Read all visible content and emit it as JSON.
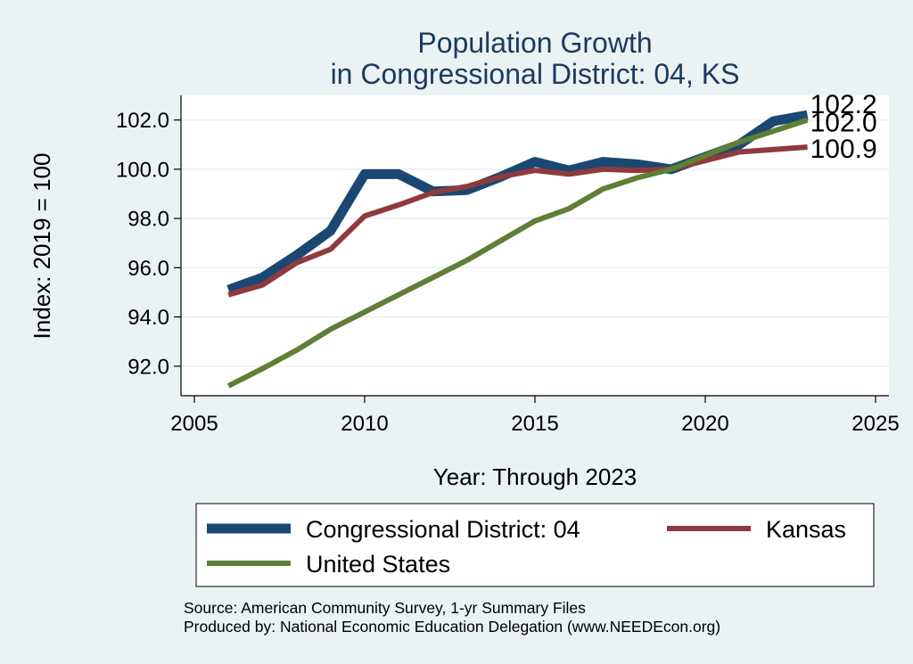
{
  "chart_data": {
    "type": "line",
    "title": [
      "Population Growth",
      "in Congressional District: 04, KS"
    ],
    "xlabel": "Year: Through 2023",
    "ylabel": "Index: 2019 = 100",
    "xlim": [
      2005,
      2025
    ],
    "ylim": [
      90.8,
      103.0
    ],
    "xticks": [
      2005,
      2010,
      2015,
      2020,
      2025
    ],
    "yticks": [
      92.0,
      94.0,
      96.0,
      98.0,
      100.0,
      102.0
    ],
    "ytick_labels": [
      "92.0",
      "94.0",
      "96.0",
      "98.0",
      "100.0",
      "102.0"
    ],
    "grid": "horizontal",
    "x": [
      2006,
      2007,
      2008,
      2009,
      2010,
      2011,
      2012,
      2013,
      2014,
      2015,
      2016,
      2017,
      2018,
      2019,
      2020,
      2021,
      2022,
      2023
    ],
    "series": [
      {
        "name": "Congressional District: 04",
        "color": "#1a4872",
        "values": [
          95.1,
          95.6,
          96.5,
          97.5,
          99.8,
          99.8,
          99.1,
          99.15,
          99.7,
          100.3,
          99.95,
          100.3,
          100.2,
          100.0,
          100.5,
          101.0,
          101.95,
          102.2
        ],
        "end_label": "102.2"
      },
      {
        "name": "Kansas",
        "color": "#8f3a3e",
        "values": [
          94.9,
          95.3,
          96.2,
          96.75,
          98.1,
          98.55,
          99.05,
          99.3,
          99.7,
          99.95,
          99.8,
          100.0,
          99.95,
          100.0,
          100.35,
          100.7,
          100.8,
          100.9
        ],
        "end_label": "100.9"
      },
      {
        "name": "United States",
        "color": "#5e7f35",
        "values": [
          91.2,
          91.9,
          92.65,
          93.5,
          94.2,
          94.9,
          95.6,
          96.3,
          97.1,
          97.9,
          98.4,
          99.2,
          99.65,
          100.0,
          100.55,
          101.1,
          101.55,
          102.0
        ],
        "end_label": "102.0"
      }
    ],
    "legend": {
      "placement": "bottom",
      "entries": [
        "Congressional District: 04",
        "Kansas",
        "United States"
      ]
    },
    "notes": [
      "Source: American Community Survey, 1-yr Summary Files",
      "Produced by: National Economic Education Delegation (www.NEEDEcon.org)"
    ]
  }
}
